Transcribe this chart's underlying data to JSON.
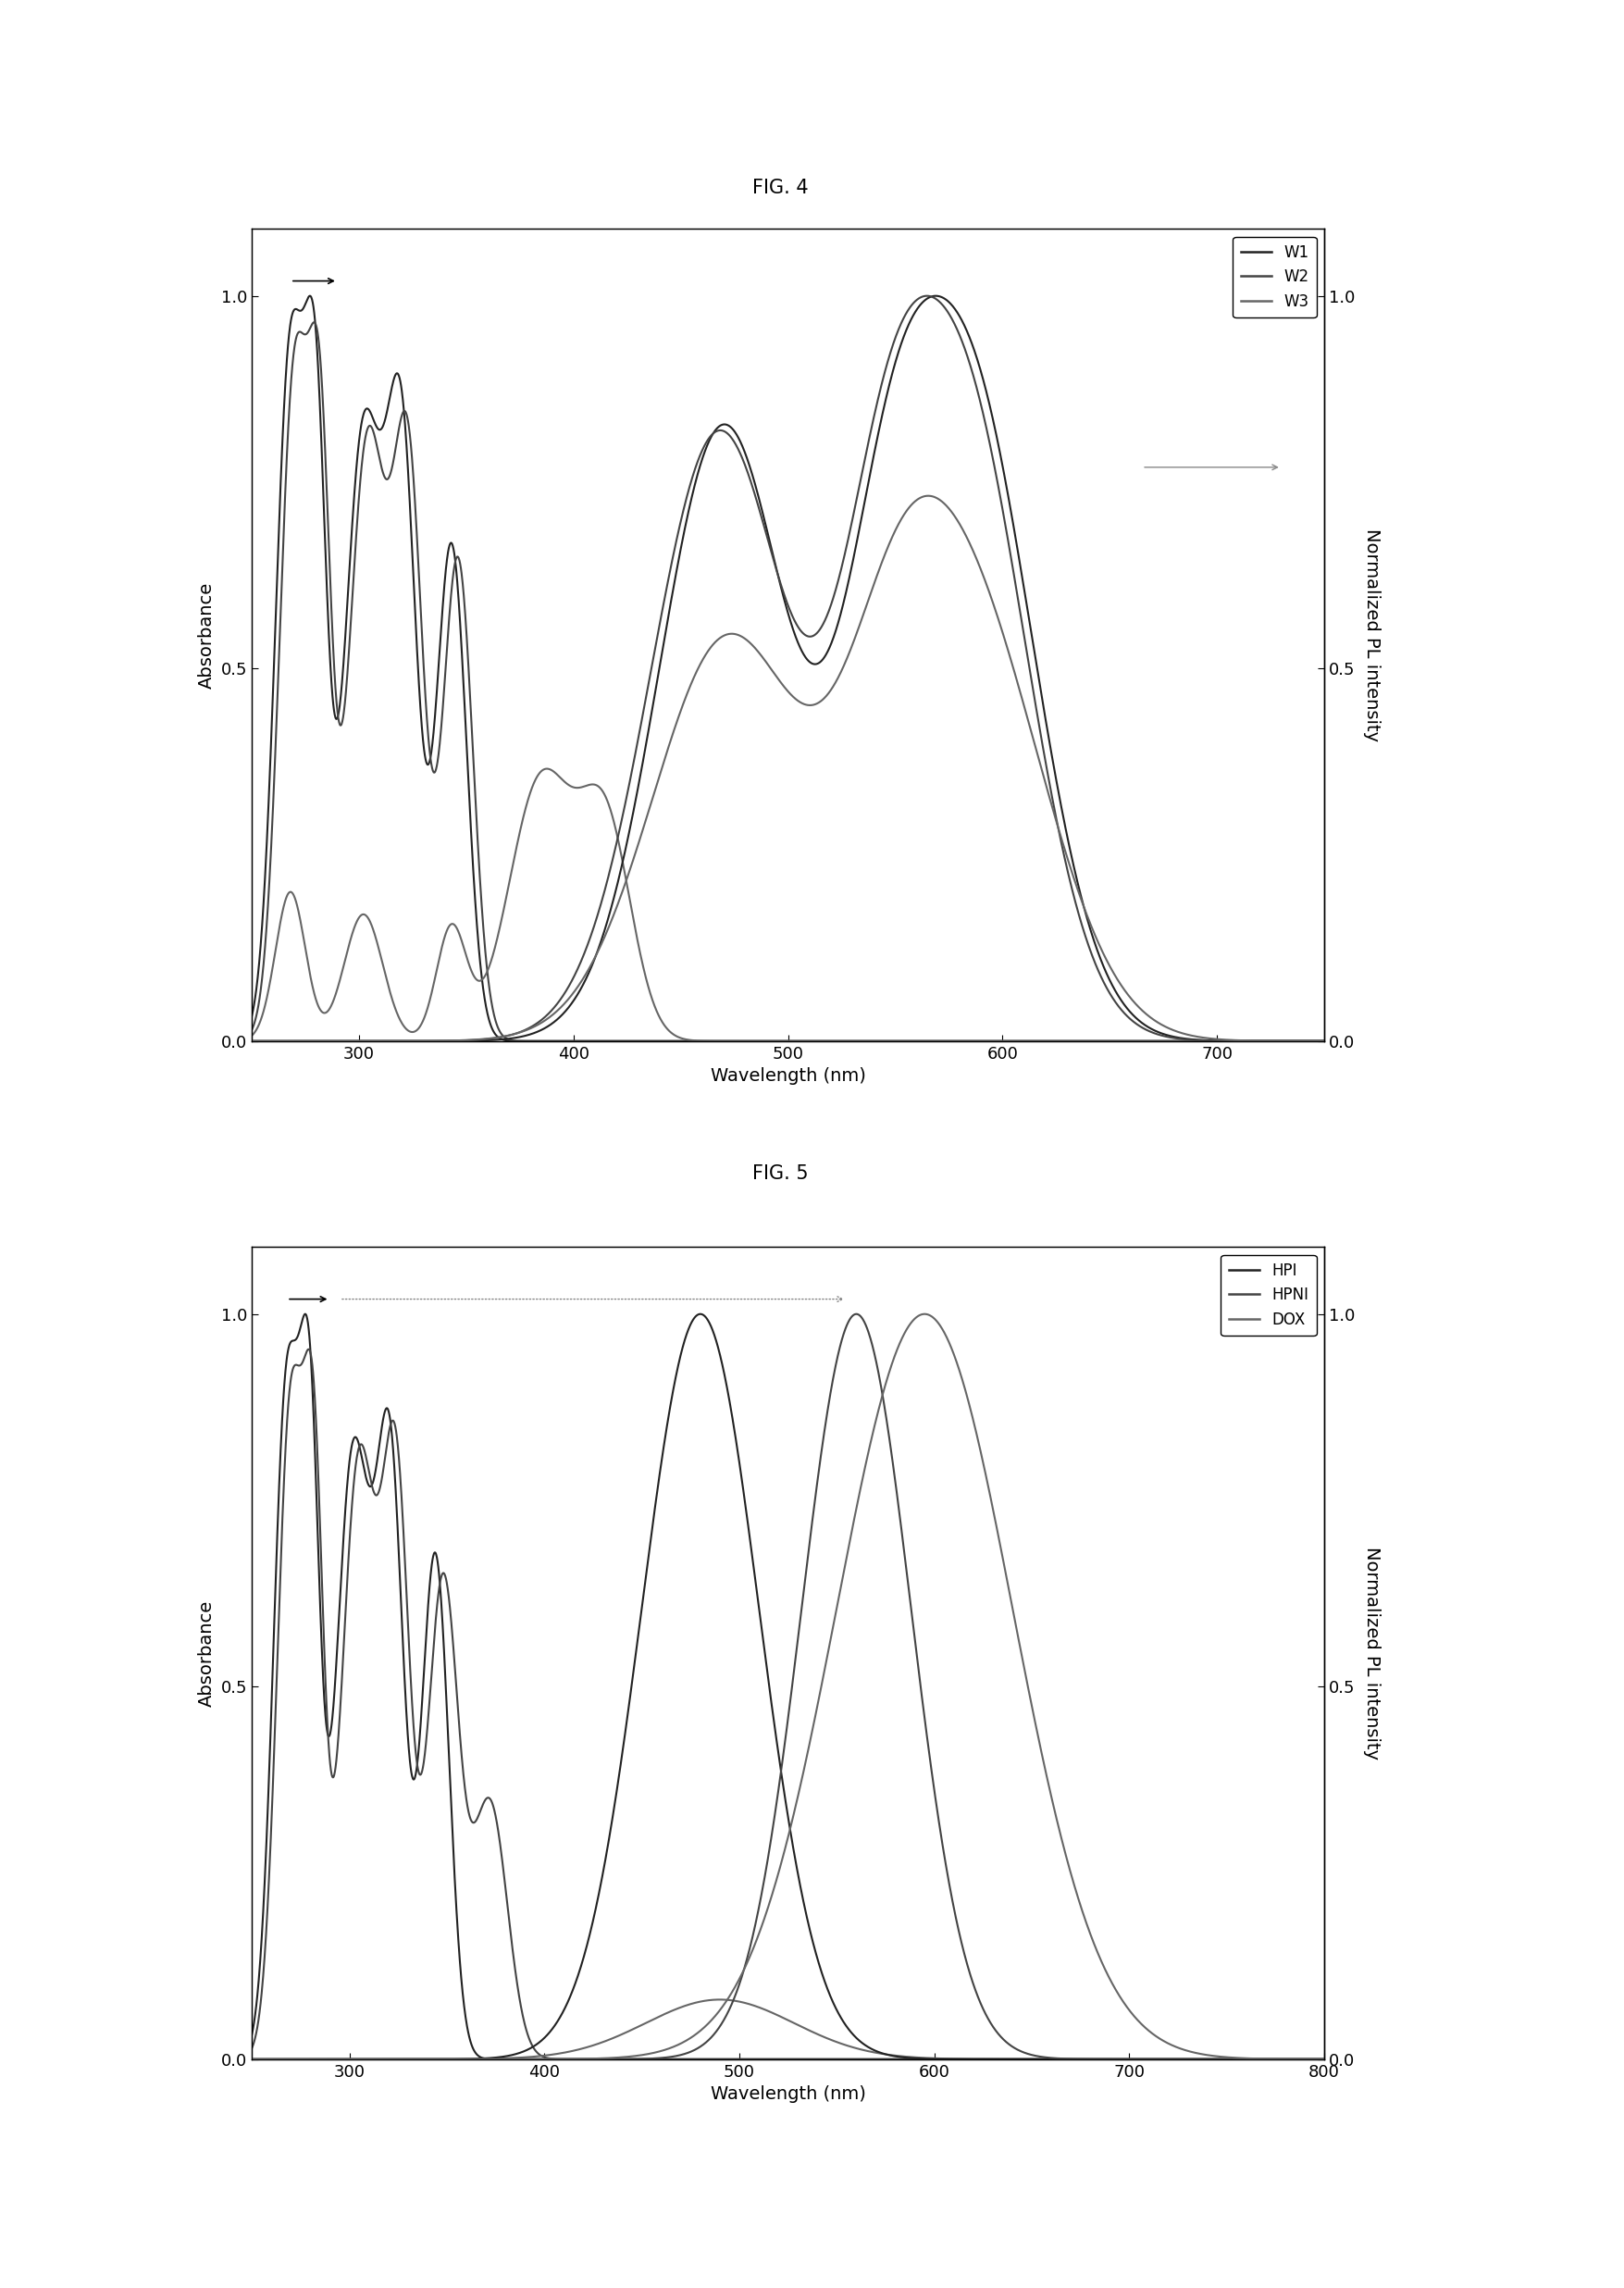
{
  "fig4": {
    "title": "FIG. 4",
    "xlabel": "Wavelength (nm)",
    "ylabel_left": "Absorbance",
    "ylabel_right": "Normalized PL intensity",
    "xlim": [
      250,
      750
    ],
    "ylim": [
      0.0,
      1.05
    ],
    "xticks": [
      300,
      400,
      500,
      600,
      700
    ],
    "yticks": [
      0.0,
      0.5,
      1.0
    ],
    "legend_labels": [
      "W1",
      "W2",
      "W3"
    ]
  },
  "fig5": {
    "title": "FIG. 5",
    "xlabel": "Wavelength (nm)",
    "ylabel_left": "Absorbance",
    "ylabel_right": "Normalized PL intensity",
    "xlim": [
      250,
      800
    ],
    "ylim": [
      0.0,
      1.05
    ],
    "xticks": [
      300,
      400,
      500,
      600,
      700,
      800
    ],
    "yticks": [
      0.0,
      0.5,
      1.0
    ],
    "legend_labels": [
      "HPI",
      "HPNI",
      "DOX"
    ]
  }
}
